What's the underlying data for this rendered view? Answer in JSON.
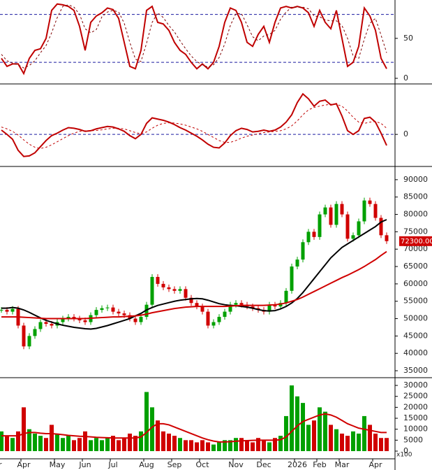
{
  "chart_data": [
    {
      "type": "line",
      "ylim": [
        0,
        98
      ],
      "yticks": [
        0,
        50
      ],
      "levels": [
        20,
        80
      ],
      "series": [
        {
          "color": "#c00000",
          "width": 2,
          "dashed": false,
          "values": [
            25,
            15,
            18,
            18,
            6,
            25,
            35,
            37,
            50,
            85,
            93,
            92,
            90,
            85,
            65,
            35,
            70,
            78,
            82,
            88,
            86,
            75,
            45,
            15,
            12,
            35,
            85,
            90,
            70,
            68,
            60,
            45,
            35,
            30,
            20,
            12,
            18,
            12,
            20,
            40,
            70,
            88,
            85,
            70,
            45,
            40,
            55,
            65,
            45,
            70,
            88,
            90,
            88,
            90,
            88,
            82,
            65,
            85,
            70,
            62,
            85,
            50,
            15,
            20,
            40,
            88,
            78,
            60,
            25,
            12
          ]
        },
        {
          "color": "#800000",
          "width": 1,
          "dashed": true,
          "values": [
            30,
            22,
            19,
            17,
            13,
            16,
            22,
            32,
            41,
            57,
            76,
            90,
            92,
            89,
            80,
            62,
            57,
            61,
            77,
            83,
            85,
            83,
            69,
            45,
            24,
            21,
            44,
            70,
            82,
            76,
            66,
            58,
            47,
            37,
            28,
            21,
            17,
            14,
            17,
            26,
            43,
            66,
            81,
            81,
            67,
            52,
            47,
            53,
            55,
            60,
            74,
            83,
            89,
            89,
            89,
            87,
            78,
            77,
            73,
            72,
            72,
            66,
            50,
            28,
            25,
            49,
            69,
            75,
            54,
            32
          ]
        }
      ]
    },
    {
      "type": "line",
      "ylim": [
        -2500,
        4000
      ],
      "yticks": [
        0
      ],
      "levels": [
        0
      ],
      "series": [
        {
          "color": "#c00000",
          "width": 2,
          "dashed": false,
          "values": [
            350,
            0,
            -400,
            -1300,
            -1800,
            -1750,
            -1500,
            -1000,
            -500,
            -100,
            100,
            350,
            550,
            500,
            400,
            250,
            300,
            450,
            550,
            650,
            600,
            450,
            250,
            -100,
            -350,
            0,
            900,
            1350,
            1250,
            1150,
            1000,
            800,
            550,
            350,
            100,
            -150,
            -450,
            -800,
            -1050,
            -1100,
            -700,
            -100,
            300,
            500,
            400,
            200,
            250,
            350,
            250,
            350,
            600,
            1000,
            1600,
            2600,
            3300,
            2900,
            2300,
            2700,
            2800,
            2400,
            2500,
            1500,
            300,
            0,
            300,
            1300,
            1400,
            1000,
            100,
            -900
          ]
        },
        {
          "color": "#c00000",
          "width": 1,
          "dashed": true,
          "values": [
            600,
            450,
            250,
            -50,
            -450,
            -800,
            -1050,
            -1150,
            -1050,
            -850,
            -600,
            -350,
            -100,
            100,
            250,
            300,
            300,
            320,
            370,
            450,
            500,
            500,
            450,
            300,
            150,
            50,
            200,
            500,
            750,
            900,
            950,
            930,
            850,
            750,
            600,
            450,
            250,
            0,
            -250,
            -500,
            -650,
            -650,
            -500,
            -300,
            -150,
            -50,
            50,
            150,
            200,
            250,
            300,
            450,
            700,
            1100,
            1600,
            2000,
            2200,
            2300,
            2400,
            2450,
            2450,
            2300,
            1900,
            1400,
            1000,
            900,
            1000,
            1050,
            900,
            500
          ]
        }
      ]
    },
    {
      "type": "candlestick",
      "ylim": [
        33400,
        93400
      ],
      "yticks": [
        35000,
        40000,
        45000,
        50000,
        55000,
        60000,
        65000,
        70000,
        75000,
        80000,
        85000,
        90000
      ],
      "up_color": "#00a000",
      "down_color": "#d00000",
      "last_price_label": "72300.00",
      "series": [
        {
          "values": [
            52500,
            52000,
            52800,
            48000,
            42000,
            45000,
            47000,
            49000,
            48500,
            48000,
            49000,
            50000,
            50500,
            50000,
            49500,
            49000,
            51000,
            52500,
            53000,
            53200,
            52000,
            51500,
            51000,
            50000,
            49000,
            50500,
            54000,
            62000,
            60000,
            59000,
            58500,
            58000,
            58500,
            56000,
            54500,
            53500,
            52000,
            48000,
            49000,
            50500,
            52000,
            54000,
            54500,
            54000,
            53500,
            53000,
            52500,
            52000,
            54000,
            53500,
            54500,
            58000,
            65000,
            67000,
            72000,
            75000,
            73500,
            80000,
            82000,
            77000,
            83000,
            80000,
            73000,
            74000,
            78000,
            84000,
            83000,
            79000,
            74000,
            72300
          ]
        },
        {
          "color": "#000000",
          "width": 2,
          "values": [
            53000,
            53000,
            53200,
            53000,
            52500,
            51800,
            51000,
            50200,
            49500,
            49000,
            48500,
            48100,
            47800,
            47500,
            47300,
            47100,
            47000,
            47200,
            47600,
            48000,
            48500,
            49000,
            49500,
            50000,
            50800,
            51500,
            52500,
            53200,
            53800,
            54200,
            54600,
            55000,
            55300,
            55500,
            55700,
            55800,
            55700,
            55300,
            54800,
            54300,
            54000,
            53800,
            53700,
            53500,
            53300,
            53000,
            52600,
            52300,
            52200,
            52300,
            52800,
            53500,
            54500,
            55800,
            57500,
            59500,
            61500,
            63500,
            65500,
            67500,
            69000,
            70500,
            71500,
            72500,
            73500,
            74500,
            75500,
            76500,
            77800,
            78500
          ]
        },
        {
          "color": "#d00000",
          "width": 2,
          "values": [
            50500,
            50500,
            50500,
            50500,
            50400,
            50300,
            50200,
            50100,
            50000,
            50000,
            50000,
            50000,
            50000,
            50000,
            50000,
            50000,
            50100,
            50200,
            50300,
            50400,
            50500,
            50500,
            50600,
            50700,
            50800,
            51000,
            51300,
            51700,
            52000,
            52300,
            52600,
            52900,
            53100,
            53300,
            53400,
            53500,
            53500,
            53500,
            53500,
            53500,
            53500,
            53600,
            53700,
            53800,
            53800,
            53800,
            53800,
            53800,
            53900,
            54000,
            54200,
            54500,
            55000,
            55500,
            56200,
            57000,
            57800,
            58600,
            59400,
            60200,
            61000,
            61800,
            62500,
            63300,
            64100,
            65000,
            66000,
            67000,
            68200,
            69300
          ]
        }
      ]
    },
    {
      "type": "bar",
      "ylim": [
        0,
        32900
      ],
      "yticks": [
        0,
        5000,
        10000,
        15000,
        20000,
        25000,
        30000
      ],
      "unit_label": "x100",
      "categories": [
        "r",
        null,
        null,
        null,
        "Apr",
        null,
        null,
        null,
        null,
        null,
        "May",
        null,
        null,
        null,
        null,
        "Jun",
        null,
        null,
        null,
        null,
        "Jul",
        null,
        null,
        null,
        null,
        null,
        "Aug",
        null,
        null,
        null,
        null,
        "Sep",
        null,
        null,
        null,
        null,
        "Oct",
        null,
        null,
        null,
        null,
        null,
        "Nov",
        null,
        null,
        null,
        null,
        "Dec",
        null,
        null,
        null,
        null,
        null,
        "2026",
        null,
        null,
        null,
        "Feb",
        null,
        null,
        null,
        "Mar",
        null,
        null,
        null,
        null,
        null,
        "Apr",
        null,
        null
      ],
      "up_color": "#00a000",
      "down_color": "#d00000",
      "series": [
        {
          "values": [
            9000,
            7000,
            6000,
            9000,
            20000,
            10000,
            8000,
            7000,
            6000,
            12000,
            8000,
            6000,
            7000,
            5000,
            6000,
            9000,
            5000,
            6000,
            5000,
            6000,
            7000,
            5000,
            6000,
            8000,
            7000,
            9000,
            27000,
            20000,
            14000,
            9000,
            8000,
            7000,
            6000,
            5000,
            5000,
            4000,
            5000,
            4000,
            3000,
            4000,
            5000,
            5000,
            6000,
            6000,
            5000,
            4000,
            6000,
            5000,
            4000,
            6000,
            7000,
            16000,
            30000,
            25000,
            22000,
            12000,
            14000,
            20000,
            18000,
            12000,
            10000,
            8000,
            7000,
            9000,
            8000,
            16000,
            12000,
            8000,
            6000,
            6000
          ]
        },
        {
          "color": "#d00000",
          "width": 2,
          "values": [
            7000,
            7000,
            7000,
            7000,
            8000,
            8500,
            8500,
            8200,
            8000,
            8000,
            7800,
            7500,
            7200,
            7000,
            6800,
            6700,
            6500,
            6300,
            6200,
            6100,
            6000,
            6000,
            6000,
            6000,
            6000,
            6500,
            8500,
            11000,
            12500,
            12500,
            12000,
            11000,
            10000,
            9000,
            8000,
            7000,
            6000,
            5200,
            4600,
            4200,
            4200,
            4300,
            4500,
            4700,
            4800,
            4900,
            5000,
            5000,
            5000,
            5000,
            5200,
            6500,
            9000,
            11500,
            13500,
            14500,
            15500,
            16500,
            17000,
            16500,
            15500,
            14000,
            12500,
            11500,
            10500,
            10000,
            9500,
            9000,
            8500,
            8500
          ]
        }
      ]
    }
  ]
}
